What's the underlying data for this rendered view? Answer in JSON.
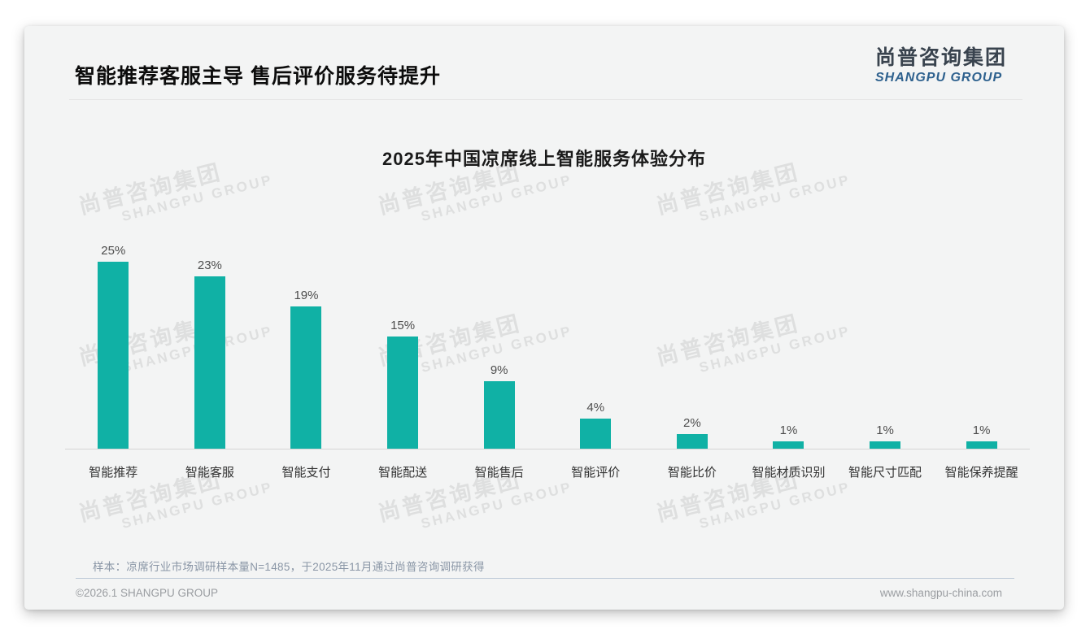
{
  "header": {
    "title": "智能推荐客服主导 售后评价服务待提升"
  },
  "logo": {
    "name_cn": "尚普咨询集团",
    "name_en": "SHANGPU GROUP",
    "color_cn": "#39434e",
    "color_en": "#2e618e"
  },
  "watermark": {
    "line1": "尚普咨询集团",
    "line2": "SHANGPU GROUP"
  },
  "chart_data": {
    "type": "bar",
    "title": "2025年中国凉席线上智能服务体验分布",
    "categories": [
      "智能推荐",
      "智能客服",
      "智能支付",
      "智能配送",
      "智能售后",
      "智能评价",
      "智能比价",
      "智能材质识别",
      "智能尺寸匹配",
      "智能保养提醒"
    ],
    "values": [
      25,
      23,
      19,
      15,
      9,
      4,
      2,
      1,
      1,
      1
    ],
    "value_labels": [
      "25%",
      "23%",
      "19%",
      "15%",
      "9%",
      "4%",
      "2%",
      "1%",
      "1%",
      "1%"
    ],
    "unit": "%",
    "ylim": [
      0,
      27
    ],
    "bar_color": "#10B1A5",
    "grid": false,
    "legend": null,
    "xlabel": "",
    "ylabel": ""
  },
  "footer": {
    "sample_note": "样本：凉席行业市场调研样本量N=1485，于2025年11月通过尚普咨询调研获得",
    "copyright": "©2026.1 SHANGPU GROUP",
    "website": "www.shangpu-china.com"
  }
}
